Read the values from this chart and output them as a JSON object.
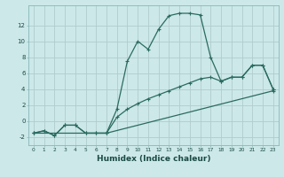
{
  "xlabel": "Humidex (Indice chaleur)",
  "background_color": "#cce8e8",
  "grid_color": "#b0cccc",
  "line_color": "#2a6b60",
  "line1_x": [
    0,
    1,
    2,
    3,
    4,
    5,
    6,
    7,
    8,
    9,
    10,
    11,
    12,
    13,
    14,
    15,
    16,
    17,
    18,
    19,
    20,
    21,
    22,
    23
  ],
  "line1_y": [
    -1.5,
    -1.2,
    -1.8,
    -0.5,
    -0.5,
    -1.5,
    -1.5,
    -1.5,
    1.5,
    7.5,
    10.0,
    9.0,
    11.5,
    13.2,
    13.5,
    13.5,
    13.3,
    8.0,
    5.0,
    5.5,
    5.5,
    7.0,
    7.0,
    4.0
  ],
  "line2_x": [
    0,
    1,
    2,
    3,
    4,
    5,
    6,
    7,
    8,
    9,
    10,
    11,
    12,
    13,
    14,
    15,
    16,
    17,
    18,
    19,
    20,
    21,
    22,
    23
  ],
  "line2_y": [
    -1.5,
    -1.2,
    -1.8,
    -0.5,
    -0.5,
    -1.5,
    -1.5,
    -1.5,
    0.5,
    1.5,
    2.2,
    2.8,
    3.3,
    3.8,
    4.3,
    4.8,
    5.3,
    5.5,
    5.0,
    5.5,
    5.5,
    7.0,
    7.0,
    4.0
  ],
  "line3_x": [
    0,
    7,
    23
  ],
  "line3_y": [
    -1.5,
    -1.5,
    3.8
  ],
  "ylim": [
    -3.0,
    14.5
  ],
  "xlim": [
    -0.5,
    23.5
  ],
  "yticks": [
    -2,
    0,
    2,
    4,
    6,
    8,
    10,
    12
  ],
  "xticks": [
    0,
    1,
    2,
    3,
    4,
    5,
    6,
    7,
    8,
    9,
    10,
    11,
    12,
    13,
    14,
    15,
    16,
    17,
    18,
    19,
    20,
    21,
    22,
    23
  ]
}
